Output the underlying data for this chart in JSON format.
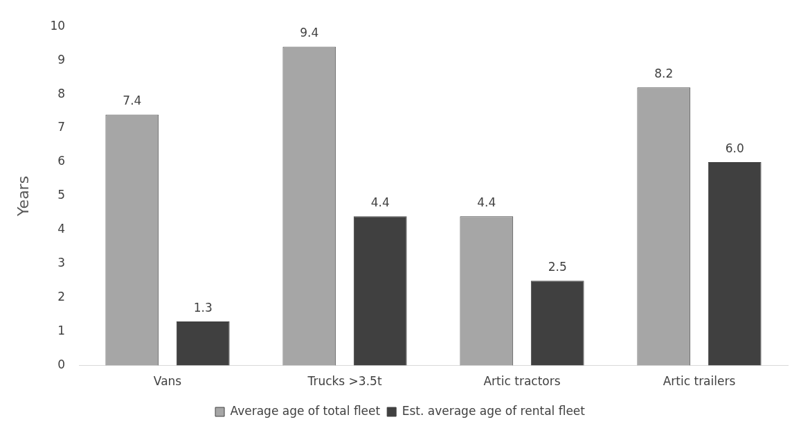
{
  "chart_data": {
    "type": "bar",
    "ylabel": "Years",
    "categories": [
      "Vans",
      "Trucks >3.5t",
      "Artic tractors",
      "Artic trailers"
    ],
    "series": [
      {
        "name": "Average age of total fleet",
        "color": "#a6a6a6",
        "values": [
          7.4,
          9.4,
          4.4,
          8.2
        ],
        "value_labels": [
          "7.4",
          "9.4",
          "4.4",
          "8.2"
        ]
      },
      {
        "name": "Est. average age of rental fleet",
        "color": "#404040",
        "values": [
          1.3,
          4.4,
          2.5,
          6.0
        ],
        "value_labels": [
          "1.3",
          "4.4",
          "2.5",
          "6.0"
        ]
      }
    ],
    "ylim": [
      0,
      10
    ],
    "yticks": [
      0,
      1,
      2,
      3,
      4,
      5,
      6,
      7,
      8,
      9,
      10
    ],
    "grid": false,
    "legend": "bottom"
  }
}
